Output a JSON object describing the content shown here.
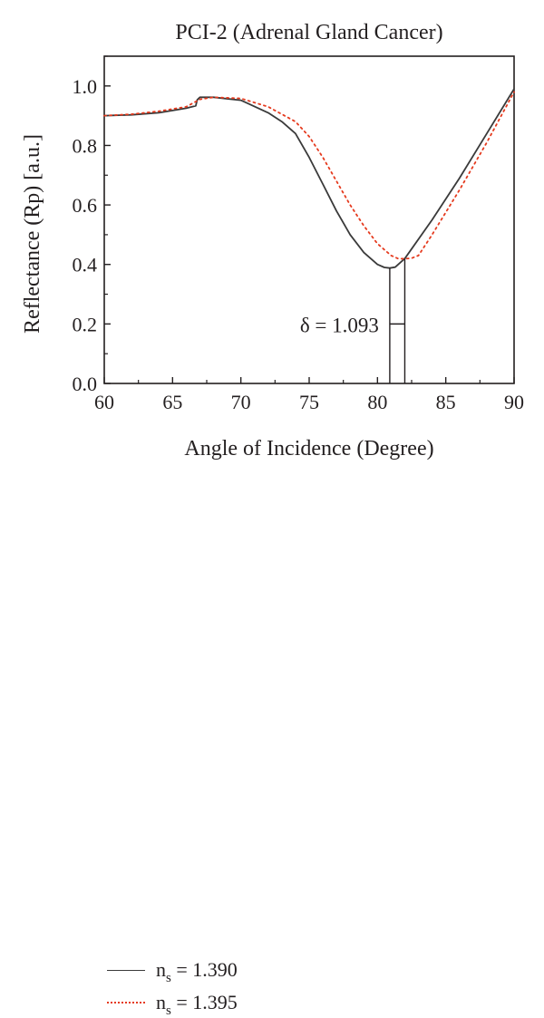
{
  "chart_data": {
    "type": "line",
    "title": "PCI-2 (Adrenal Gland Cancer)",
    "xlabel": "Angle of Incidence (Degree)",
    "ylabel": "Reflectance (Rp) [a.u.]",
    "xlim": [
      60,
      90
    ],
    "ylim": [
      0.0,
      1.1
    ],
    "x_ticks": [
      60,
      65,
      70,
      75,
      80,
      85,
      90
    ],
    "x_tick_labels": [
      "60",
      "65",
      "70",
      "75",
      "80",
      "85",
      "90"
    ],
    "y_ticks": [
      0.0,
      0.2,
      0.4,
      0.6,
      0.8,
      1.0
    ],
    "y_tick_labels": [
      "0.0",
      "0.2",
      "0.4",
      "0.6",
      "0.8",
      "1.0"
    ],
    "grid": false,
    "legend_position": "below-left",
    "annotation": {
      "text": "δ = 1.093",
      "x_from": 80.9,
      "x_to": 82.0,
      "y": 0.2
    },
    "series": [
      {
        "name": "n_s = 1.390",
        "legend_main": "n",
        "legend_sub": "s",
        "legend_value": " = 1.390",
        "style": "solid",
        "color": "#3a3a3a",
        "x": [
          60,
          62,
          64,
          66,
          66.7,
          66.8,
          67,
          68,
          70,
          72,
          73,
          74,
          75,
          76,
          77,
          78,
          79,
          80,
          80.5,
          80.9,
          81.3,
          82,
          84,
          86,
          88,
          90
        ],
        "y": [
          0.9,
          0.903,
          0.91,
          0.925,
          0.933,
          0.953,
          0.962,
          0.962,
          0.952,
          0.91,
          0.88,
          0.84,
          0.76,
          0.67,
          0.58,
          0.5,
          0.44,
          0.4,
          0.39,
          0.388,
          0.391,
          0.42,
          0.55,
          0.69,
          0.84,
          0.99
        ]
      },
      {
        "name": "n_s = 1.395",
        "legend_main": "n",
        "legend_sub": "s",
        "legend_value": " = 1.395",
        "style": "dotted",
        "color": "#e53a1e",
        "x": [
          60,
          62,
          64,
          66,
          67,
          68,
          70,
          72,
          74,
          75,
          76,
          77,
          78,
          79,
          80,
          81,
          81.5,
          82,
          82.5,
          83,
          84,
          86,
          88,
          90
        ],
        "y": [
          0.9,
          0.905,
          0.915,
          0.93,
          0.955,
          0.962,
          0.958,
          0.93,
          0.88,
          0.83,
          0.76,
          0.68,
          0.6,
          0.53,
          0.47,
          0.43,
          0.42,
          0.419,
          0.421,
          0.43,
          0.5,
          0.65,
          0.81,
          0.98
        ]
      }
    ]
  }
}
